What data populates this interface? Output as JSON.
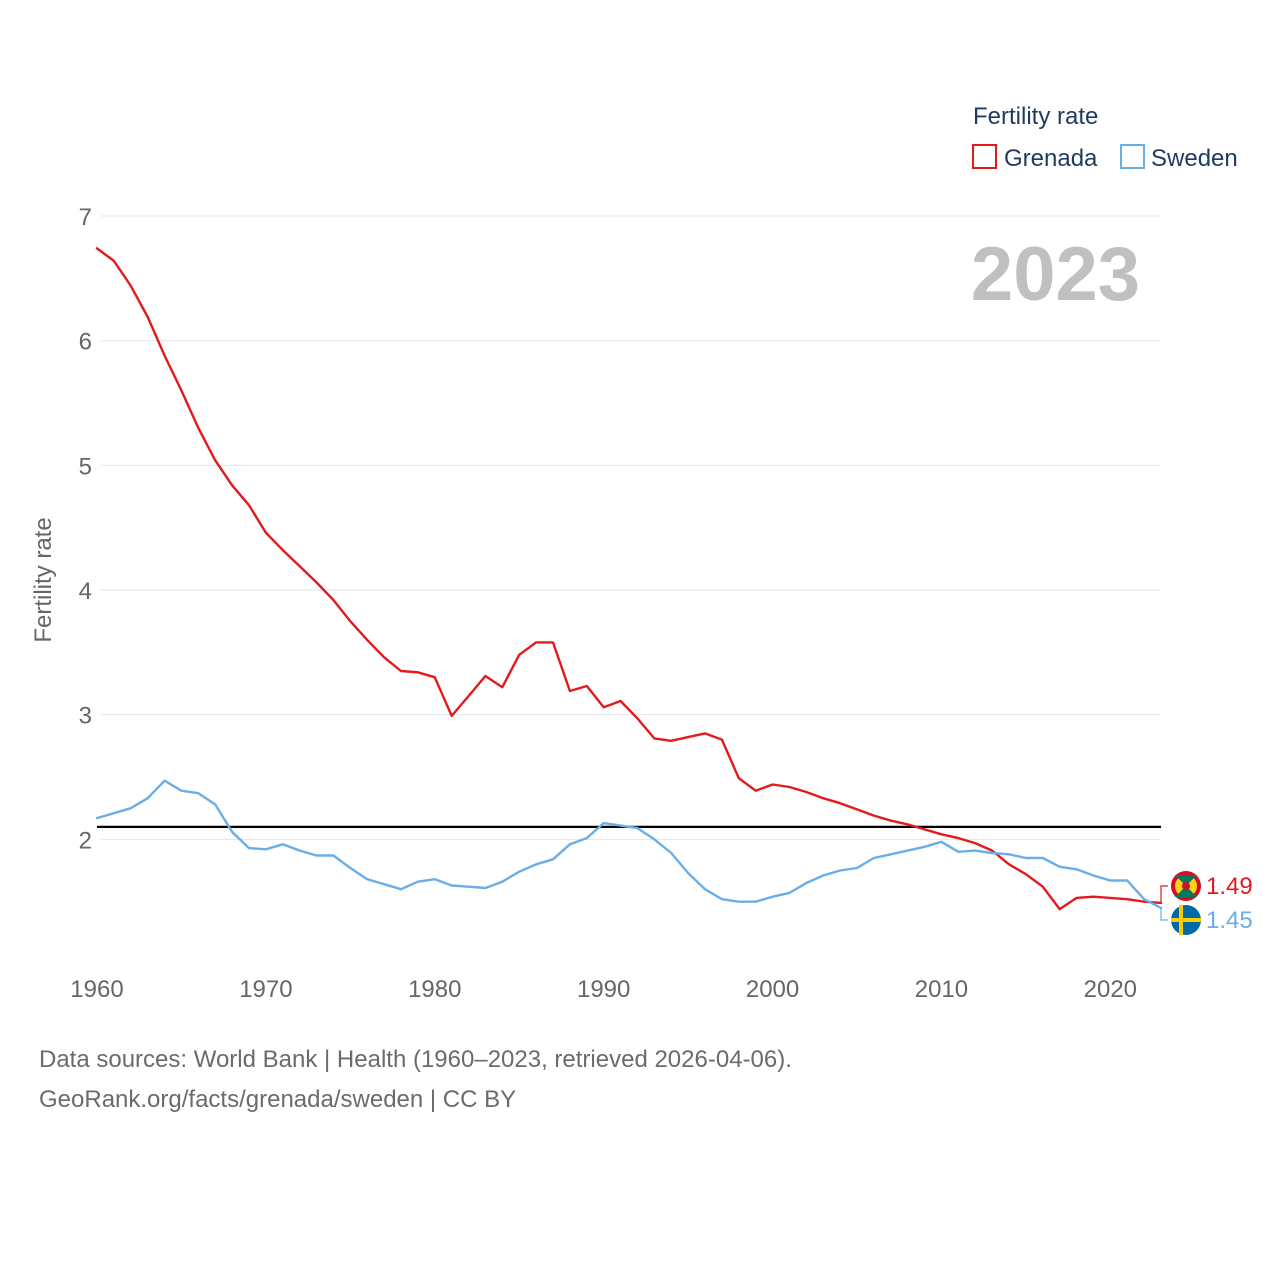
{
  "chart_data": {
    "type": "line",
    "year_label": "2023",
    "ylabel": "Fertility rate",
    "xlabel": "",
    "xlim": [
      1960,
      2023
    ],
    "ylim": [
      1.0,
      7.0
    ],
    "x_ticks": [
      1960,
      1970,
      1980,
      1990,
      2000,
      2010,
      2020
    ],
    "y_ticks": [
      2,
      3,
      4,
      5,
      6,
      7
    ],
    "reference_line": 2.1,
    "legend": {
      "title": "Fertility rate",
      "placement": "top-right",
      "entries": [
        "Grenada",
        "Sweden"
      ]
    },
    "x": [
      1960,
      1961,
      1962,
      1963,
      1964,
      1965,
      1966,
      1967,
      1968,
      1969,
      1970,
      1971,
      1972,
      1973,
      1974,
      1975,
      1976,
      1977,
      1978,
      1979,
      1980,
      1981,
      1982,
      1983,
      1984,
      1985,
      1986,
      1987,
      1988,
      1989,
      1990,
      1991,
      1992,
      1993,
      1994,
      1995,
      1996,
      1997,
      1998,
      1999,
      2000,
      2001,
      2002,
      2003,
      2004,
      2005,
      2006,
      2007,
      2008,
      2009,
      2010,
      2011,
      2012,
      2013,
      2014,
      2015,
      2016,
      2017,
      2018,
      2019,
      2020,
      2021,
      2022,
      2023
    ],
    "series": [
      {
        "name": "Grenada",
        "color": "#e31a1c",
        "end_label": "1.49",
        "values": [
          6.74,
          6.64,
          6.44,
          6.19,
          5.88,
          5.6,
          5.3,
          5.04,
          4.84,
          4.68,
          4.46,
          4.32,
          4.19,
          4.06,
          3.92,
          3.75,
          3.6,
          3.46,
          3.35,
          3.34,
          3.3,
          2.99,
          3.15,
          3.31,
          3.22,
          3.48,
          3.58,
          3.58,
          3.19,
          3.23,
          3.06,
          3.11,
          2.97,
          2.81,
          2.79,
          2.82,
          2.85,
          2.8,
          2.49,
          2.39,
          2.44,
          2.42,
          2.38,
          2.33,
          2.29,
          2.24,
          2.19,
          2.15,
          2.12,
          2.08,
          2.04,
          2.01,
          1.97,
          1.91,
          1.8,
          1.72,
          1.62,
          1.44,
          1.53,
          1.54,
          1.53,
          1.52,
          1.5,
          1.49
        ]
      },
      {
        "name": "Sweden",
        "color": "#6aaee8",
        "end_label": "1.45",
        "values": [
          2.17,
          2.21,
          2.25,
          2.33,
          2.47,
          2.39,
          2.37,
          2.28,
          2.06,
          1.93,
          1.92,
          1.96,
          1.91,
          1.87,
          1.87,
          1.77,
          1.68,
          1.64,
          1.6,
          1.66,
          1.68,
          1.63,
          1.62,
          1.61,
          1.66,
          1.74,
          1.8,
          1.84,
          1.96,
          2.01,
          2.13,
          2.11,
          2.09,
          2.0,
          1.89,
          1.73,
          1.6,
          1.52,
          1.5,
          1.5,
          1.54,
          1.57,
          1.65,
          1.71,
          1.75,
          1.77,
          1.85,
          1.88,
          1.91,
          1.94,
          1.98,
          1.9,
          1.91,
          1.89,
          1.88,
          1.85,
          1.85,
          1.78,
          1.76,
          1.71,
          1.67,
          1.67,
          1.52,
          1.45
        ]
      }
    ]
  },
  "footer": {
    "line1": "Data sources: World Bank | Health (1960–2023, retrieved 2026-04-06).",
    "line2": "GeoRank.org/facts/grenada/sweden | CC BY"
  },
  "colors": {
    "grid": "#e6e6e6",
    "tick_text": "#666666",
    "legend_text": "#1f3a5f",
    "year_watermark": "#c0c0c0",
    "reference_line": "#000000",
    "grenada_flag_red": "#ce1126",
    "grenada_flag_green": "#007a5e",
    "grenada_flag_yellow": "#fcd116",
    "sweden_flag_blue": "#006aa7",
    "sweden_flag_yellow": "#fecc02"
  }
}
